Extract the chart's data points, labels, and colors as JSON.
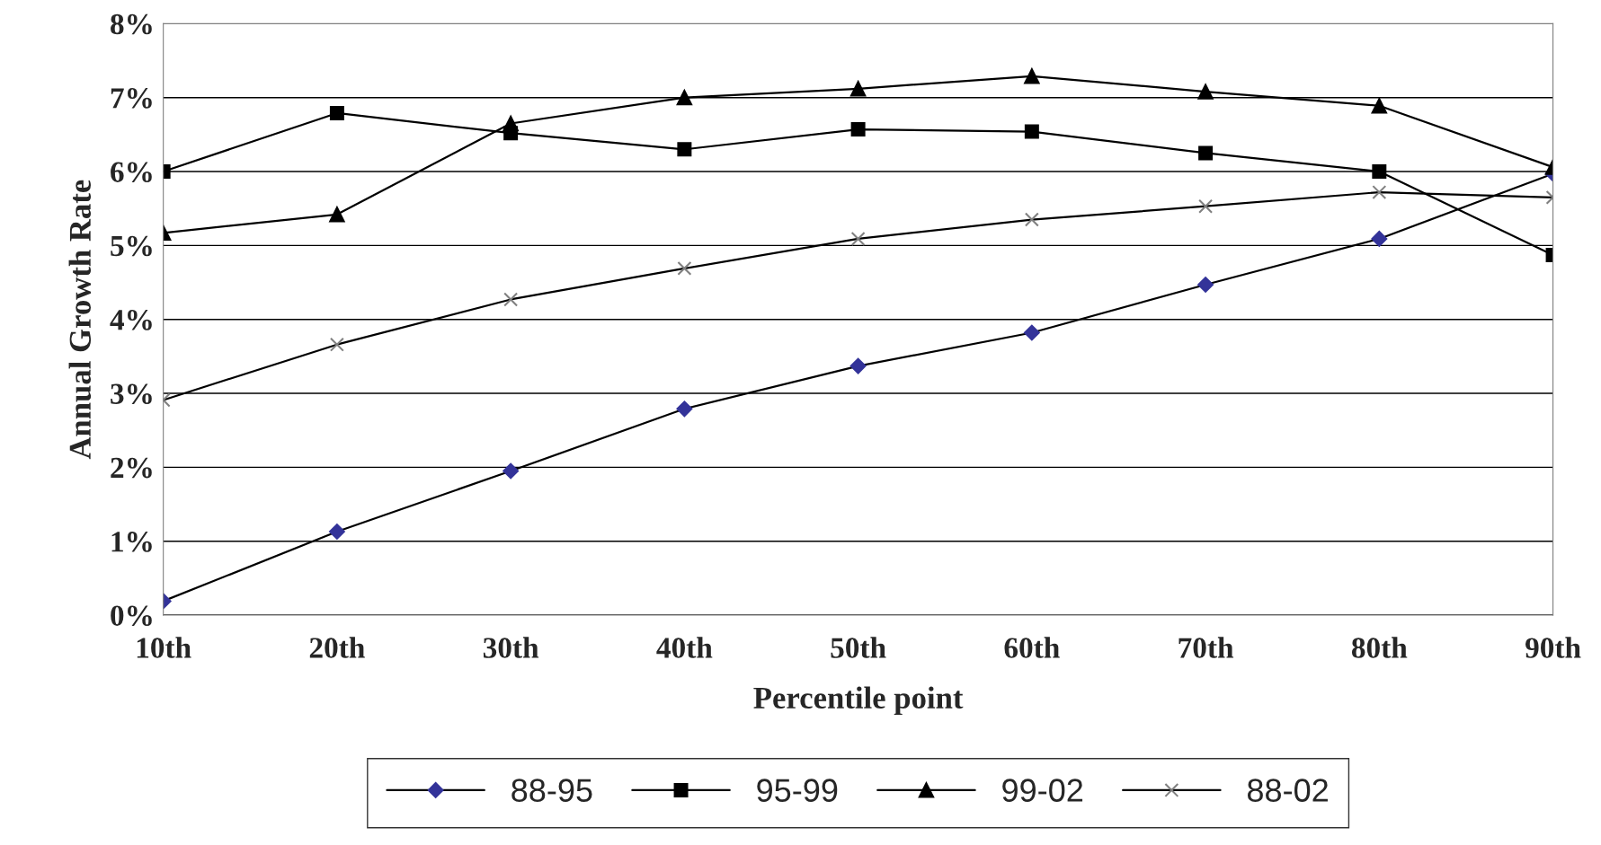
{
  "chart_data": {
    "type": "line",
    "xlabel": "Percentile point",
    "ylabel": "Annual Growth Rate",
    "categories": [
      "10th",
      "20th",
      "30th",
      "40th",
      "50th",
      "60th",
      "70th",
      "80th",
      "90th"
    ],
    "series": [
      {
        "name": "88-95",
        "color": "#333399",
        "marker": "diamond",
        "values": [
          0.19,
          1.13,
          1.95,
          2.79,
          3.37,
          3.82,
          4.47,
          5.09,
          5.97
        ]
      },
      {
        "name": "95-99",
        "color": "#000000",
        "marker": "square",
        "values": [
          6.0,
          6.79,
          6.52,
          6.3,
          6.57,
          6.54,
          6.25,
          6.0,
          4.87
        ]
      },
      {
        "name": "99-02",
        "color": "#000000",
        "marker": "triangle",
        "values": [
          5.17,
          5.42,
          6.65,
          7.0,
          7.12,
          7.29,
          7.08,
          6.89,
          6.06
        ]
      },
      {
        "name": "88-02",
        "color": "#808080",
        "marker": "cross",
        "values": [
          2.91,
          3.66,
          4.27,
          4.69,
          5.09,
          5.35,
          5.53,
          5.72,
          5.65
        ]
      }
    ],
    "ylim": [
      0,
      8
    ],
    "yticks": [
      {
        "value": 0,
        "label": "0%"
      },
      {
        "value": 1,
        "label": "1%"
      },
      {
        "value": 2,
        "label": "2%"
      },
      {
        "value": 3,
        "label": "3%"
      },
      {
        "value": 4,
        "label": "4%"
      },
      {
        "value": 5,
        "label": "5%"
      },
      {
        "value": 6,
        "label": "6%"
      },
      {
        "value": 7,
        "label": "7%"
      },
      {
        "value": 8,
        "label": "8%"
      }
    ],
    "grid": "y",
    "legend": "bottom",
    "line_style": "solid"
  }
}
